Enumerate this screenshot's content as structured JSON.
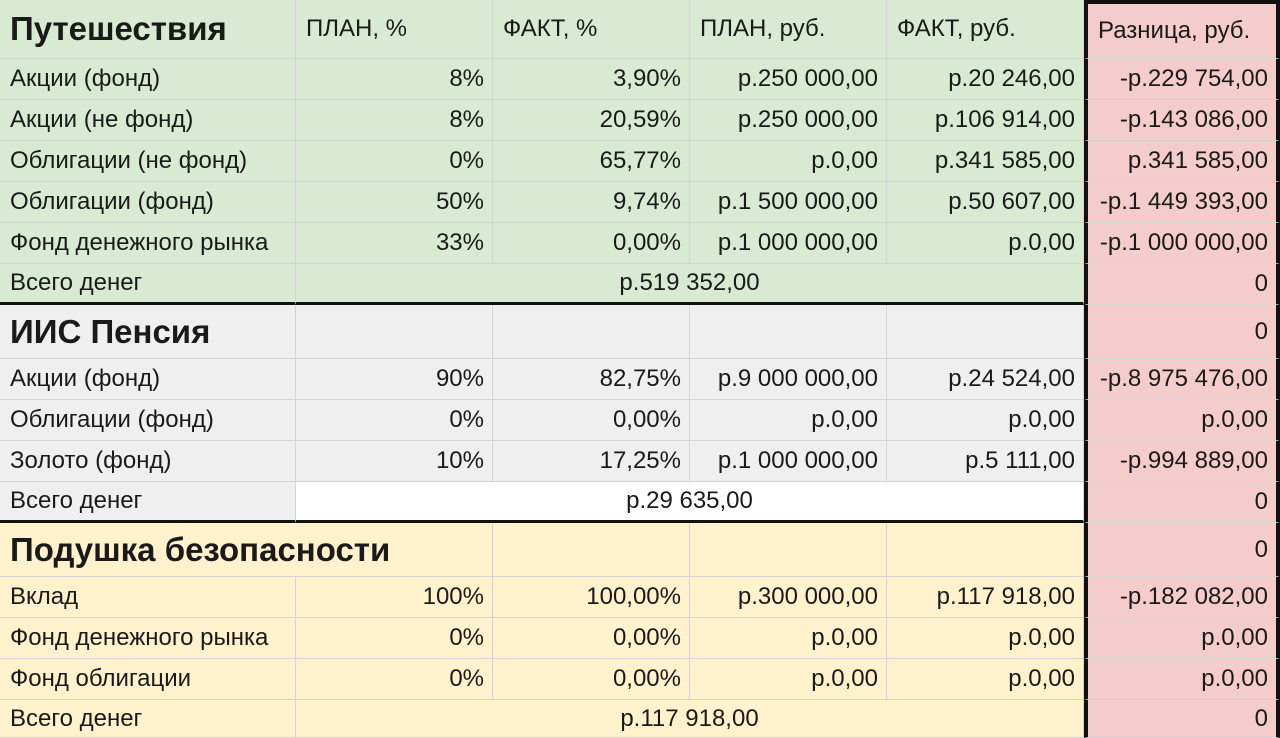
{
  "headers": {
    "plan_pct": "ПЛАН, %",
    "fact_pct": "ФАКТ, %",
    "plan_rub": "ПЛАН, руб.",
    "fact_rub": "ФАКТ, руб.",
    "diff_rub": "Разница, руб."
  },
  "sections": [
    {
      "title": "Путешествия",
      "title_diff": "",
      "rows": [
        {
          "name": "Акции (фонд)",
          "plan_pct": "8%",
          "fact_pct": "3,90%",
          "plan_rub": "р.250 000,00",
          "fact_rub": "р.20 246,00",
          "diff": "-р.229 754,00"
        },
        {
          "name": "Акции (не фонд)",
          "plan_pct": "8%",
          "fact_pct": "20,59%",
          "plan_rub": "р.250 000,00",
          "fact_rub": "р.106 914,00",
          "diff": "-р.143 086,00"
        },
        {
          "name": "Облигации (не фонд)",
          "plan_pct": "0%",
          "fact_pct": "65,77%",
          "plan_rub": "р.0,00",
          "fact_rub": "р.341 585,00",
          "diff": "р.341 585,00"
        },
        {
          "name": "Облигации (фонд)",
          "plan_pct": "50%",
          "fact_pct": "9,74%",
          "plan_rub": "р.1 500 000,00",
          "fact_rub": "р.50 607,00",
          "diff": "-р.1 449 393,00"
        },
        {
          "name": "Фонд денежного рынка",
          "plan_pct": "33%",
          "fact_pct": "0,00%",
          "plan_rub": "р.1 000 000,00",
          "fact_rub": "р.0,00",
          "diff": "-р.1 000 000,00"
        }
      ],
      "total_label": "Всего денег",
      "total_value": "р.519 352,00",
      "total_diff": "0"
    },
    {
      "title": "ИИС Пенсия",
      "title_diff": "0",
      "rows": [
        {
          "name": "Акции (фонд)",
          "plan_pct": "90%",
          "fact_pct": "82,75%",
          "plan_rub": "р.9 000 000,00",
          "fact_rub": "р.24 524,00",
          "diff": "-р.8 975 476,00"
        },
        {
          "name": "Облигации (фонд)",
          "plan_pct": "0%",
          "fact_pct": "0,00%",
          "plan_rub": "р.0,00",
          "fact_rub": "р.0,00",
          "diff": "р.0,00"
        },
        {
          "name": "Золото (фонд)",
          "plan_pct": "10%",
          "fact_pct": "17,25%",
          "plan_rub": "р.1 000 000,00",
          "fact_rub": "р.5 111,00",
          "diff": "-р.994 889,00"
        }
      ],
      "total_label": "Всего денег",
      "total_value": "р.29 635,00",
      "total_diff": "0"
    },
    {
      "title": "Подушка безопасности",
      "title_diff": "0",
      "rows": [
        {
          "name": "Вклад",
          "plan_pct": "100%",
          "fact_pct": "100,00%",
          "plan_rub": "р.300 000,00",
          "fact_rub": "р.117 918,00",
          "diff": "-р.182 082,00"
        },
        {
          "name": "Фонд денежного рынка",
          "plan_pct": "0%",
          "fact_pct": "0,00%",
          "plan_rub": "р.0,00",
          "fact_rub": "р.0,00",
          "diff": "р.0,00"
        },
        {
          "name": "Фонд облигации",
          "plan_pct": "0%",
          "fact_pct": "0,00%",
          "plan_rub": "р.0,00",
          "fact_rub": "р.0,00",
          "diff": "р.0,00"
        }
      ],
      "total_label": "Всего денег",
      "total_value": "р.117 918,00",
      "total_diff": "0"
    }
  ]
}
